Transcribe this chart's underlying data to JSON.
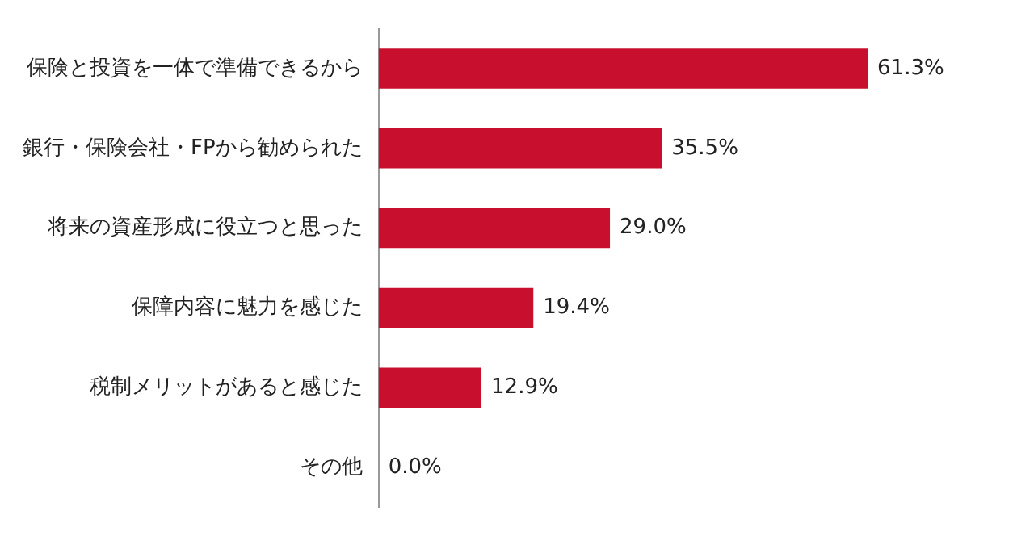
{
  "chart_data": {
    "type": "bar",
    "orientation": "horizontal",
    "categories": [
      "保険と投資を一体で準備できるから",
      "銀行・保険会社・FPから勧められた",
      "将来の資産形成に役立つと思った",
      "保障内容に魅力を感じた",
      "税制メリットがあると感じた",
      "その他"
    ],
    "values": [
      61.3,
      35.5,
      29.0,
      19.4,
      12.9,
      0.0
    ],
    "value_labels": [
      "61.3%",
      "35.5%",
      "29.0%",
      "19.4%",
      "12.9%",
      "0.0%"
    ],
    "color": "#c8102e"
  }
}
